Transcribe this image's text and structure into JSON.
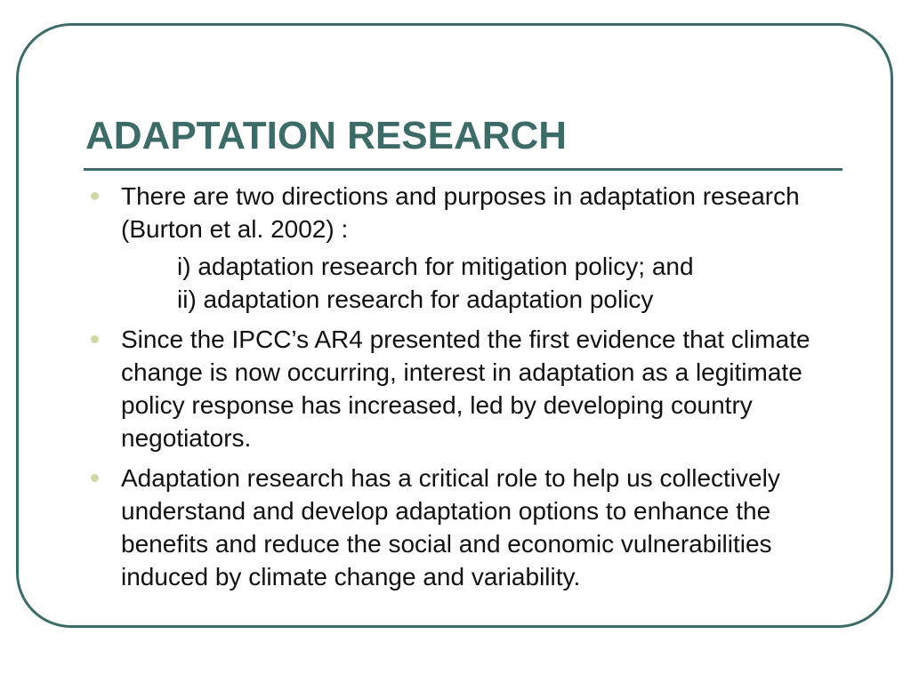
{
  "slide": {
    "title": "ADAPTATION RESEARCH",
    "bullets": [
      {
        "text": "There are two directions and purposes in adaptation research (Burton et al. 2002) :",
        "sub_items": [
          "i) adaptation research for mitigation policy; and",
          "ii) adaptation research for adaptation policy"
        ]
      },
      {
        "text": "Since the IPCC’s AR4 presented the first evidence that climate change is now occurring, interest in adaptation as a legitimate policy response has increased, led by developing country negotiators."
      },
      {
        "text": "Adaptation research has a critical role to help us collectively understand and develop adaptation options to enhance the benefits and reduce the social and economic vulnerabilities induced by climate change and variability."
      }
    ]
  },
  "colors": {
    "accent": "#3d6b68",
    "bullet": "#d2d6a8",
    "text": "#111111",
    "background": "#ffffff"
  }
}
